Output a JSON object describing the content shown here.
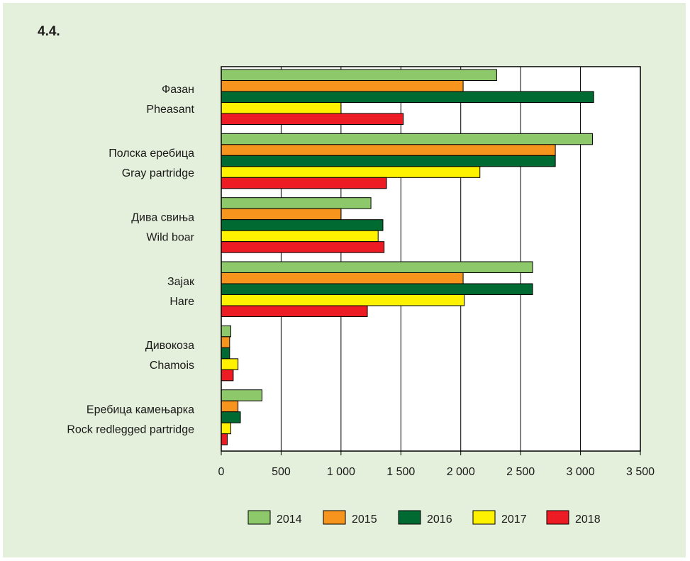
{
  "figure_label": "4.4.",
  "chart_data": {
    "type": "bar",
    "orientation": "horizontal",
    "categories": [
      [
        "Фазан",
        "Pheasant"
      ],
      [
        "Полска еребица",
        "Gray partridge"
      ],
      [
        "Дива свиња",
        "Wild boar"
      ],
      [
        "Зајак",
        "Hare"
      ],
      [
        "Дивокоза",
        "Chamois"
      ],
      [
        "Еребица камењарка",
        "Rock redlegged partridge"
      ]
    ],
    "series": [
      {
        "name": "2014",
        "color": "#8dc86a",
        "values": [
          2300,
          3100,
          1250,
          2600,
          80,
          340
        ]
      },
      {
        "name": "2015",
        "color": "#f7941d",
        "values": [
          2020,
          2790,
          1000,
          2020,
          70,
          140
        ]
      },
      {
        "name": "2016",
        "color": "#006a33",
        "values": [
          3110,
          2790,
          1350,
          2600,
          70,
          160
        ]
      },
      {
        "name": "2017",
        "color": "#fff200",
        "values": [
          1000,
          2160,
          1310,
          2030,
          140,
          80
        ]
      },
      {
        "name": "2018",
        "color": "#ed1c24",
        "values": [
          1520,
          1380,
          1360,
          1220,
          100,
          50
        ]
      }
    ],
    "xlim": [
      0,
      3500
    ],
    "xticks": [
      0,
      500,
      1000,
      1500,
      2000,
      2500,
      3000,
      3500
    ],
    "xtick_labels": [
      "0",
      "500",
      "1 000",
      "1 500",
      "2 000",
      "2 500",
      "3 000",
      "3 500"
    ],
    "grid": "vertical",
    "legend_position": "bottom"
  }
}
